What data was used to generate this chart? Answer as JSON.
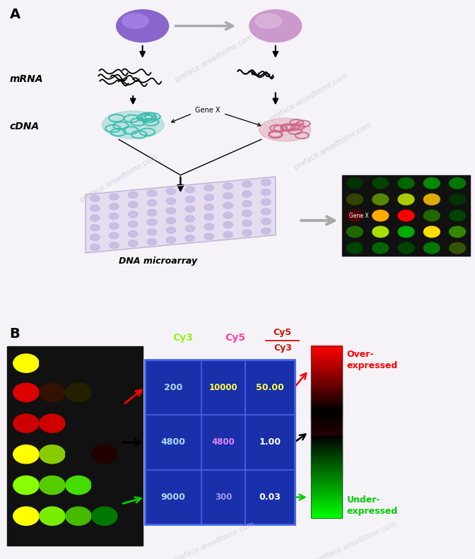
{
  "panel_A_label": "A",
  "panel_B_label": "B",
  "mrna_label": "mRNA",
  "cdna_label": "cDNA",
  "dna_microarray_label": "DNA microarray",
  "gene_x_label": "Gene X",
  "cy3_label": "Cy3",
  "cy5_label": "Cy5",
  "over_expressed_label": "Over-\nexpressed",
  "under_expressed_label": "Under-\nexpressed",
  "bg_color": "#f0eef5",
  "table_border_color": "#2244cc",
  "table_fill_color": "#1a2f99",
  "table_line_color": "#4466dd",
  "cy3_col_color": "#99dd22",
  "cy5_col_color": "#ff4499",
  "cy5cy3_col_color": "#cc1100",
  "cy3_text_colors": [
    "#aaddff",
    "#aaddff",
    "#aaddff"
  ],
  "cy5_text_colors": [
    "#ffff44",
    "#dd88ff",
    "#9999ff"
  ],
  "ratio_text_colors": [
    "#ffff44",
    "#ffffff",
    "#ffffff"
  ],
  "cy3_vals": [
    "200",
    "4800",
    "9000"
  ],
  "cy5_vals": [
    "10000",
    "4800",
    "300"
  ],
  "ratio_vals": [
    "50.00",
    "1.00",
    "0.03"
  ],
  "watermark": "preface.aroadtome.com"
}
